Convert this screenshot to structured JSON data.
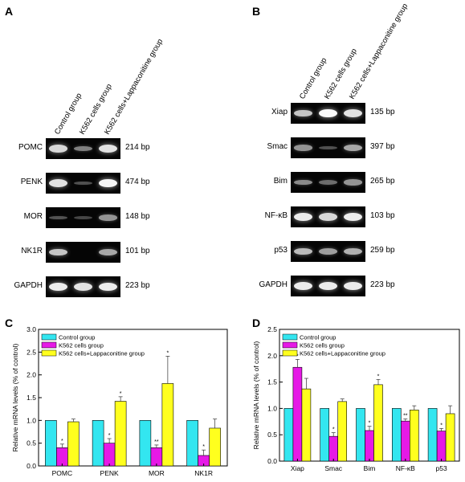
{
  "panels": {
    "A": "A",
    "B": "B",
    "C": "C",
    "D": "D"
  },
  "gel_a": {
    "lanes": [
      "Control group",
      "K562 cells group",
      "K562 cells+Lappaconitine group"
    ],
    "rows": [
      {
        "gene": "POMC",
        "size": "214 bp",
        "band": [
          0.8,
          0.35,
          0.85
        ]
      },
      {
        "gene": "PENK",
        "size": "474 bp",
        "band": [
          0.85,
          0.1,
          0.95
        ]
      },
      {
        "gene": "MOR",
        "size": "148 bp",
        "band": [
          0.12,
          0.05,
          0.45
        ]
      },
      {
        "gene": "NK1R",
        "size": "101 bp",
        "band": [
          0.7,
          0.0,
          0.55
        ]
      },
      {
        "gene": "GAPDH",
        "size": "223 bp",
        "band": [
          0.9,
          0.85,
          0.9
        ]
      }
    ]
  },
  "gel_b": {
    "lanes": [
      "Control group",
      "K562 cells group",
      "K562 cells+Lappaconitine group"
    ],
    "rows": [
      {
        "gene": "Xiap",
        "size": "135 bp",
        "band": [
          0.7,
          0.98,
          0.85
        ]
      },
      {
        "gene": "Smac",
        "size": "397 bp",
        "band": [
          0.45,
          0.1,
          0.55
        ]
      },
      {
        "gene": "Bim",
        "size": "265 bp",
        "band": [
          0.4,
          0.25,
          0.45
        ]
      },
      {
        "gene": "NF-κB",
        "size": "103 bp",
        "band": [
          0.9,
          0.8,
          0.9
        ]
      },
      {
        "gene": "p53",
        "size": "259 bp",
        "band": [
          0.65,
          0.5,
          0.6
        ]
      },
      {
        "gene": "GAPDH",
        "size": "223 bp",
        "band": [
          0.9,
          0.9,
          0.9
        ]
      }
    ]
  },
  "chart_data": [
    {
      "type": "bar",
      "panel": "C",
      "ylabel": "Relative mRNA levels (% of control)",
      "ylim": [
        0,
        3.0
      ],
      "yticks": [
        "0.0",
        "0.5",
        "1.0",
        "1.5",
        "2.0",
        "2.5",
        "3.0"
      ],
      "categories": [
        "POMC",
        "PENK",
        "MOR",
        "NK1R"
      ],
      "legend_position": "top-left",
      "series": [
        {
          "name": "Control group",
          "color": "#33e6f0",
          "values": [
            1.0,
            1.0,
            1.0,
            1.0
          ],
          "errors": [
            0,
            0,
            0,
            0
          ],
          "marks": [
            "",
            "",
            "",
            ""
          ]
        },
        {
          "name": "K562 cells group",
          "color": "#e619e6",
          "values": [
            0.4,
            0.5,
            0.4,
            0.23
          ],
          "errors": [
            0.08,
            0.1,
            0.06,
            0.12
          ],
          "marks": [
            "*",
            "*",
            "**",
            "*"
          ]
        },
        {
          "name": "K562 cells+Lappaconitine group",
          "color": "#ffff1e",
          "values": [
            0.97,
            1.42,
            1.81,
            0.83
          ],
          "errors": [
            0.06,
            0.1,
            0.6,
            0.2
          ],
          "marks": [
            "",
            "*",
            "*",
            ""
          ]
        }
      ]
    },
    {
      "type": "bar",
      "panel": "D",
      "ylabel": "Relative mRNA levels (% of control)",
      "ylim": [
        0,
        2.5
      ],
      "yticks": [
        "0.0",
        "0.5",
        "1.0",
        "1.5",
        "2.0",
        "2.5"
      ],
      "categories": [
        "Xiap",
        "Smac",
        "Bim",
        "NF-κB",
        "p53"
      ],
      "legend_position": "top-left",
      "series": [
        {
          "name": "Control group",
          "color": "#33e6f0",
          "values": [
            1.0,
            1.0,
            1.0,
            1.0,
            1.0
          ],
          "errors": [
            0,
            0,
            0,
            0,
            0
          ],
          "marks": [
            "",
            "",
            "",
            "",
            ""
          ]
        },
        {
          "name": "K562 cells group",
          "color": "#e619e6",
          "values": [
            1.78,
            0.47,
            0.58,
            0.76,
            0.57
          ],
          "errors": [
            0.15,
            0.07,
            0.08,
            0.04,
            0.05
          ],
          "marks": [
            "*",
            "*",
            "*",
            "**",
            "*"
          ]
        },
        {
          "name": "K562 cells+Lappaconitine group",
          "color": "#ffff1e",
          "values": [
            1.37,
            1.13,
            1.45,
            0.97,
            0.9
          ],
          "errors": [
            0.2,
            0.05,
            0.1,
            0.08,
            0.15
          ],
          "marks": [
            "",
            "",
            "*",
            "",
            ""
          ]
        }
      ]
    }
  ]
}
